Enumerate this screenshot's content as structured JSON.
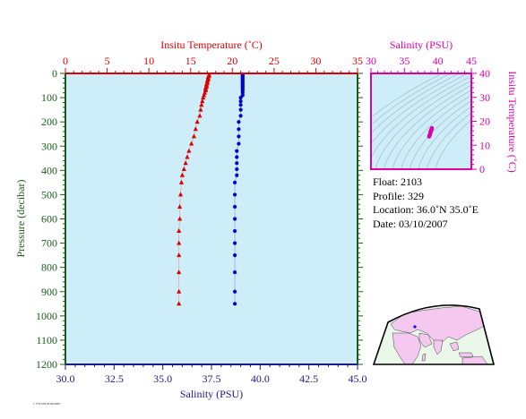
{
  "colors": {
    "temperature": "#dd0000",
    "salinity_main": "#0000cc",
    "salinity_axis": "#1a1a8c",
    "pressure_axis": "#1a5c1a",
    "ts_inset": "#dd00aa",
    "plot_bg": "#cdeef8",
    "land": "#f5c8f0"
  },
  "chart_data": [
    {
      "type": "scatter",
      "name": "profile",
      "xlabel_top": "Insitu Temperature (˚C)",
      "xlabel_bottom": "Salinity (PSU)",
      "ylabel": "Pressure (decibar)",
      "temp_range": [
        0,
        35
      ],
      "sal_range": [
        30.0,
        45.0
      ],
      "pressure_range": [
        0,
        1200
      ],
      "temp_ticks": [
        "0",
        "5",
        "10",
        "15",
        "20",
        "25",
        "30",
        "35"
      ],
      "sal_ticks": [
        "30.0",
        "32.5",
        "35.0",
        "37.5",
        "40.0",
        "42.5",
        "45.0"
      ],
      "pressure_ticks": [
        "0",
        "100",
        "200",
        "300",
        "400",
        "500",
        "600",
        "700",
        "800",
        "900",
        "1000",
        "1100",
        "1200"
      ],
      "temperature": {
        "marker": "triangle",
        "points": [
          [
            17.2,
            6
          ],
          [
            17.2,
            10
          ],
          [
            17.1,
            15
          ],
          [
            17.1,
            20
          ],
          [
            17.1,
            25
          ],
          [
            17.0,
            30
          ],
          [
            17.0,
            35
          ],
          [
            17.0,
            40
          ],
          [
            16.9,
            45
          ],
          [
            16.9,
            50
          ],
          [
            16.9,
            55
          ],
          [
            16.8,
            60
          ],
          [
            16.8,
            65
          ],
          [
            16.8,
            70
          ],
          [
            16.7,
            80
          ],
          [
            16.6,
            90
          ],
          [
            16.5,
            100
          ],
          [
            16.4,
            115
          ],
          [
            16.3,
            130
          ],
          [
            16.2,
            150
          ],
          [
            16.1,
            175
          ],
          [
            15.8,
            200
          ],
          [
            15.6,
            230
          ],
          [
            15.4,
            260
          ],
          [
            15.1,
            290
          ],
          [
            14.8,
            320
          ],
          [
            14.6,
            345
          ],
          [
            14.4,
            370
          ],
          [
            14.2,
            395
          ],
          [
            14.0,
            420
          ],
          [
            13.9,
            450
          ],
          [
            13.8,
            500
          ],
          [
            13.7,
            550
          ],
          [
            13.7,
            600
          ],
          [
            13.6,
            650
          ],
          [
            13.6,
            700
          ],
          [
            13.6,
            750
          ],
          [
            13.6,
            820
          ],
          [
            13.6,
            900
          ],
          [
            13.6,
            950
          ]
        ]
      },
      "salinity": {
        "marker": "circle",
        "points": [
          [
            39.1,
            6
          ],
          [
            39.1,
            10
          ],
          [
            39.1,
            15
          ],
          [
            39.1,
            20
          ],
          [
            39.1,
            25
          ],
          [
            39.1,
            30
          ],
          [
            39.1,
            35
          ],
          [
            39.1,
            40
          ],
          [
            39.1,
            45
          ],
          [
            39.1,
            50
          ],
          [
            39.1,
            55
          ],
          [
            39.1,
            60
          ],
          [
            39.1,
            65
          ],
          [
            39.1,
            70
          ],
          [
            39.1,
            80
          ],
          [
            39.1,
            90
          ],
          [
            39.0,
            100
          ],
          [
            39.0,
            115
          ],
          [
            39.0,
            130
          ],
          [
            39.0,
            150
          ],
          [
            39.0,
            175
          ],
          [
            38.9,
            200
          ],
          [
            38.9,
            230
          ],
          [
            38.9,
            260
          ],
          [
            38.9,
            290
          ],
          [
            38.8,
            320
          ],
          [
            38.8,
            345
          ],
          [
            38.8,
            370
          ],
          [
            38.8,
            395
          ],
          [
            38.8,
            420
          ],
          [
            38.7,
            450
          ],
          [
            38.7,
            500
          ],
          [
            38.7,
            550
          ],
          [
            38.7,
            600
          ],
          [
            38.7,
            650
          ],
          [
            38.7,
            700
          ],
          [
            38.7,
            750
          ],
          [
            38.7,
            820
          ],
          [
            38.7,
            900
          ],
          [
            38.7,
            950
          ]
        ]
      }
    },
    {
      "type": "scatter",
      "name": "ts-diagram",
      "xlabel": "Salinity (PSU)",
      "ylabel": "Insitu Temperature (˚C)",
      "xlim": [
        30,
        45
      ],
      "ylim": [
        0,
        40
      ],
      "x_ticks": [
        "30",
        "35",
        "40",
        "45"
      ],
      "y_ticks": [
        "0",
        "10",
        "20",
        "30",
        "40"
      ],
      "points": [
        [
          38.7,
          13.6
        ],
        [
          38.7,
          13.9
        ],
        [
          38.8,
          14.2
        ],
        [
          38.8,
          14.6
        ],
        [
          38.9,
          15.1
        ],
        [
          38.9,
          15.4
        ],
        [
          38.9,
          15.8
        ],
        [
          39.0,
          16.1
        ],
        [
          39.0,
          16.3
        ],
        [
          39.0,
          16.5
        ],
        [
          39.1,
          16.7
        ],
        [
          39.1,
          16.9
        ],
        [
          39.1,
          17.1
        ],
        [
          39.1,
          17.2
        ]
      ]
    }
  ],
  "info": {
    "float": "Float:  2103",
    "profile": "Profile:  329",
    "location": "Location:  36.0˚N  35.0˚E",
    "date": "Date:  03/10/2007"
  },
  "footer": {
    "stamp": "1 773 578 03 09 2007"
  },
  "map": {
    "float_marker": "float-location-marker"
  }
}
